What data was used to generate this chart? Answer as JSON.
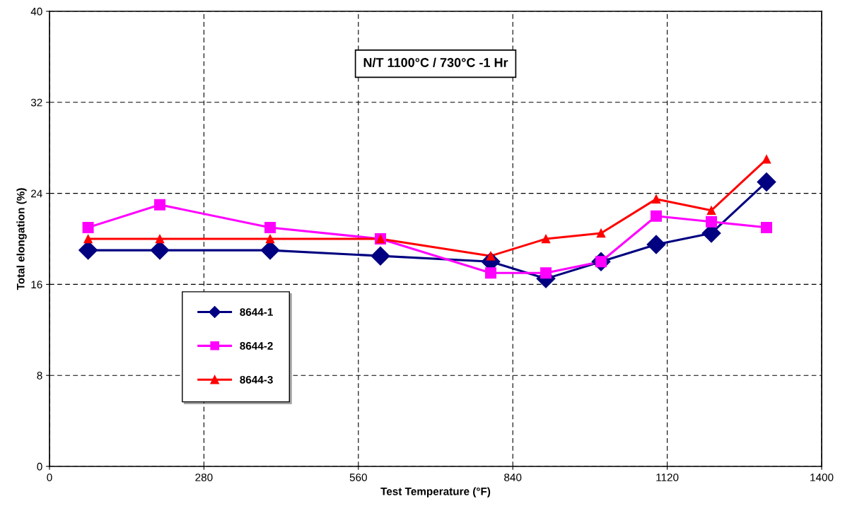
{
  "chart_data": {
    "type": "line",
    "title": "N/T 1100°C / 730°C -1 Hr",
    "xlabel": "Test Temperature (°F)",
    "ylabel": "Total elongation (%)",
    "x": [
      70,
      200,
      400,
      600,
      800,
      900,
      1000,
      1100,
      1200,
      1300
    ],
    "series": [
      {
        "name": "8644-1",
        "color": "#000080",
        "marker": "diamond",
        "values": [
          19,
          19,
          19,
          18.5,
          18,
          16.5,
          18,
          19.5,
          20.5,
          25
        ]
      },
      {
        "name": "8644-2",
        "color": "#ff00ff",
        "marker": "square",
        "values": [
          21,
          23,
          21,
          20,
          17,
          17,
          18,
          22,
          21.5,
          21
        ]
      },
      {
        "name": "8644-3",
        "color": "#ff0000",
        "marker": "triangle",
        "values": [
          20,
          20,
          20,
          20,
          18.5,
          20,
          20.5,
          23.5,
          22.5,
          27
        ]
      }
    ],
    "xlim": [
      0,
      1400
    ],
    "xticks": [
      0,
      280,
      560,
      840,
      1120,
      1400
    ],
    "ylim": [
      0,
      40
    ],
    "yticks": [
      0,
      8,
      16,
      24,
      32,
      40
    ],
    "grid": true,
    "legend": "bottom left",
    "line_style": "solid"
  }
}
